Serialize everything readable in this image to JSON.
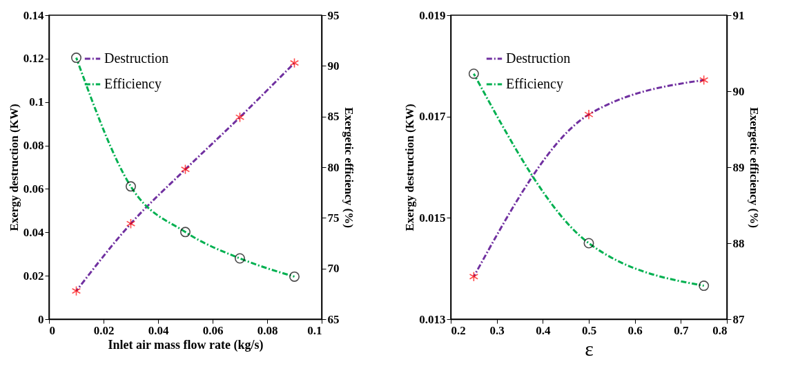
{
  "chart_data": [
    {
      "type": "line",
      "xlabel": "Inlet air mass flow rate (kg/s)",
      "ylabel": "Exergy destruction (KW)",
      "y2label": "Exergetic efficiency (%)",
      "x": [
        0.01,
        0.03,
        0.05,
        0.07,
        0.09
      ],
      "xlim": [
        0,
        0.1
      ],
      "xticks": [
        0,
        0.02,
        0.04,
        0.06,
        0.08,
        0.1
      ],
      "ylim": [
        0,
        0.14
      ],
      "yticks": [
        0,
        0.02,
        0.04,
        0.06,
        0.08,
        0.1,
        0.12,
        0.14
      ],
      "y2lim": [
        65,
        95
      ],
      "y2ticks": [
        65,
        70,
        75,
        80,
        85,
        90,
        95
      ],
      "legend": "top left",
      "grid": false,
      "line_style": "dashed",
      "series": [
        {
          "name": "Destruction",
          "color": "#7030a0",
          "marker": "cross",
          "values": [
            0.013,
            0.044,
            0.069,
            0.093,
            0.118
          ]
        },
        {
          "name": "Efficiency",
          "color": "#00b050",
          "marker": "circle",
          "axis": "y2",
          "values": [
            90.8,
            78.1,
            73.6,
            71.0,
            69.2
          ]
        }
      ]
    },
    {
      "type": "line",
      "xlabel": "ε",
      "ylabel": "Exergy destruction (KW)",
      "y2label": "Exergetic efficiency (%)",
      "x": [
        0.25,
        0.5,
        0.75
      ],
      "xlim": [
        0.2,
        0.8
      ],
      "xticks": [
        0.2,
        0.3,
        0.4,
        0.5,
        0.6,
        0.7,
        0.8
      ],
      "ylim": [
        0.013,
        0.019
      ],
      "yticks": [
        0.013,
        0.015,
        0.017,
        0.019
      ],
      "y2lim": [
        87,
        91
      ],
      "y2ticks": [
        87,
        88,
        89,
        90,
        91
      ],
      "legend": "top left",
      "grid": false,
      "line_style": "dashed",
      "series": [
        {
          "name": "Destruction",
          "color": "#7030a0",
          "marker": "cross",
          "values": [
            0.01384,
            0.01704,
            0.01772
          ]
        },
        {
          "name": "Efficiency",
          "color": "#00b050",
          "marker": "circle",
          "axis": "y2",
          "values": [
            90.23,
            88.0,
            87.44
          ]
        }
      ]
    }
  ]
}
